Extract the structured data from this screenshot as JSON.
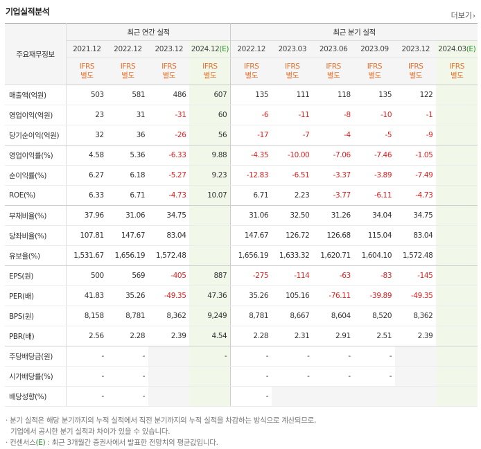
{
  "title": "기업실적분석",
  "more_label": "더보기",
  "more_arrow": "›",
  "header": {
    "label_col": "주요재무정보",
    "annual_group": "최근 연간 실적",
    "quarter_group": "최근 분기 실적",
    "annual_periods": [
      "2021.12",
      "2022.12",
      "2023.12",
      "2024.12"
    ],
    "annual_est_tag": "(E)",
    "quarter_periods": [
      "2022.12",
      "2023.03",
      "2023.06",
      "2023.09",
      "2023.12",
      "2024.03"
    ],
    "quarter_est_tag": "(E)",
    "ifrs_line1": "IFRS",
    "ifrs_line2": "별도"
  },
  "rows": [
    {
      "label": "매출액(억원)",
      "values": [
        "503",
        "581",
        "486",
        "607",
        "135",
        "111",
        "118",
        "135",
        "122",
        ""
      ]
    },
    {
      "label": "영업이익(억원)",
      "values": [
        "23",
        "31",
        "-31",
        "60",
        "-6",
        "-11",
        "-8",
        "-10",
        "-1",
        ""
      ]
    },
    {
      "label": "당기순이익(억원)",
      "values": [
        "32",
        "36",
        "-26",
        "56",
        "-17",
        "-7",
        "-4",
        "-5",
        "-9",
        ""
      ]
    },
    {
      "label": "영업이익률(%)",
      "values": [
        "4.58",
        "5.36",
        "-6.33",
        "9.88",
        "-4.35",
        "-10.00",
        "-7.06",
        "-7.46",
        "-1.05",
        ""
      ]
    },
    {
      "label": "순이익률(%)",
      "values": [
        "6.27",
        "6.18",
        "-5.27",
        "9.23",
        "-12.83",
        "-6.51",
        "-3.37",
        "-3.89",
        "-7.49",
        ""
      ]
    },
    {
      "label": "ROE(%)",
      "values": [
        "6.33",
        "6.71",
        "-4.73",
        "10.07",
        "6.71",
        "2.23",
        "-3.77",
        "-6.11",
        "-4.73",
        ""
      ]
    },
    {
      "label": "부채비율(%)",
      "values": [
        "37.96",
        "31.06",
        "34.75",
        "",
        "31.06",
        "32.50",
        "31.26",
        "34.04",
        "34.75",
        ""
      ]
    },
    {
      "label": "당좌비율(%)",
      "values": [
        "107.81",
        "147.67",
        "83.04",
        "",
        "147.67",
        "126.72",
        "126.68",
        "115.04",
        "83.04",
        ""
      ]
    },
    {
      "label": "유보율(%)",
      "values": [
        "1,531.67",
        "1,656.19",
        "1,572.48",
        "",
        "1,656.19",
        "1,633.32",
        "1,620.71",
        "1,604.10",
        "1,572.48",
        ""
      ]
    },
    {
      "label": "EPS(원)",
      "values": [
        "500",
        "569",
        "-405",
        "887",
        "-275",
        "-114",
        "-63",
        "-83",
        "-145",
        ""
      ]
    },
    {
      "label": "PER(배)",
      "values": [
        "41.83",
        "35.26",
        "-49.35",
        "47.36",
        "35.26",
        "105.16",
        "-76.11",
        "-39.89",
        "-49.35",
        ""
      ]
    },
    {
      "label": "BPS(원)",
      "values": [
        "8,158",
        "8,781",
        "8,362",
        "9,249",
        "8,781",
        "8,667",
        "8,604",
        "8,520",
        "8,362",
        ""
      ]
    },
    {
      "label": "PBR(배)",
      "values": [
        "2.56",
        "2.28",
        "2.39",
        "4.54",
        "2.28",
        "2.31",
        "2.91",
        "2.51",
        "2.39",
        ""
      ]
    },
    {
      "label": "주당배당금(원)",
      "values": [
        "-",
        "-",
        "",
        "-",
        "-",
        "-",
        "-",
        "-",
        "",
        ""
      ]
    },
    {
      "label": "시가배당률(%)",
      "values": [
        "-",
        "-",
        "",
        "",
        "-",
        "-",
        "-",
        "-",
        "",
        ""
      ]
    },
    {
      "label": "배당성향(%)",
      "values": [
        "-",
        "-",
        "",
        "",
        "-",
        "",
        "",
        "",
        "",
        ""
      ]
    }
  ],
  "notes": {
    "line1": "· 분기 실적은 해당 분기까지의 누적 실적에서 직전 분기까지의 누적 실적을 차감하는 방식으로 계산되므로,",
    "line2": "기업에서 공시한 분기 실적과 차이가 있을 수 있습니다.",
    "line3_prefix": "· 컨센서스",
    "line3_tag": "(E)",
    "line3_suffix": " : 최근 3개월간 증권사에서 발표한 전망치의 평균값입니다."
  },
  "colors": {
    "negative": "#e02020",
    "ifrs": "#e8702a",
    "estimate": "#2e8f2e",
    "highlight_bg": "#f1f8ea",
    "empty_bg": "#f5f5f5"
  }
}
